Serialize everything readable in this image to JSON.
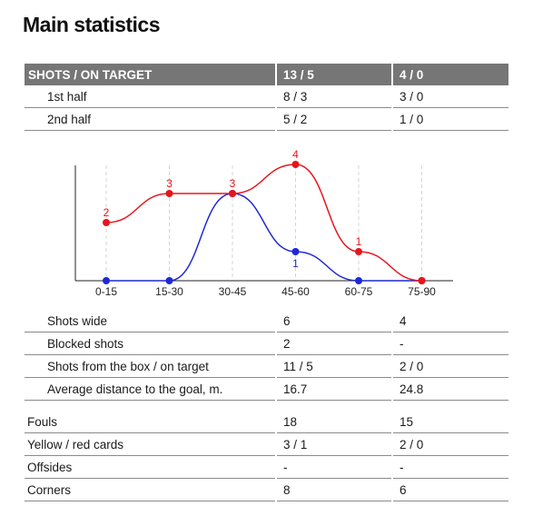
{
  "title": "Main statistics",
  "shots_table": {
    "header": {
      "label": "SHOTS / ON TARGET",
      "team1": "13 / 5",
      "team2": "4 / 0"
    },
    "rows": [
      {
        "label": "1st half",
        "team1": "8 / 3",
        "team2": "3 / 0"
      },
      {
        "label": "2nd half",
        "team1": "5 / 2",
        "team2": "1 / 0"
      }
    ]
  },
  "chart_data": {
    "type": "line",
    "categories": [
      "0-15",
      "15-30",
      "30-45",
      "45-60",
      "60-75",
      "75-90"
    ],
    "ylim": [
      0,
      4
    ],
    "grid": "vertical dashed",
    "series": [
      {
        "values": [
          2,
          3,
          3,
          4,
          1,
          0
        ],
        "color": "#e8141b",
        "labels": [
          "2",
          "3",
          "3",
          "4",
          "1",
          ""
        ]
      },
      {
        "values": [
          0,
          0,
          3,
          1,
          0,
          0
        ],
        "color": "#1f28d6",
        "labels": [
          "",
          "",
          "",
          "1",
          "",
          ""
        ]
      }
    ]
  },
  "shots_detail": [
    {
      "label": "Shots wide",
      "team1": "6",
      "team2": "4"
    },
    {
      "label": "Blocked shots",
      "team1": "2",
      "team2": "-"
    },
    {
      "label": "Shots from the box / on target",
      "team1": "11 / 5",
      "team2": "2 / 0"
    },
    {
      "label": "Average distance to the goal, m.",
      "team1": "16.7",
      "team2": "24.8"
    }
  ],
  "other_stats": [
    {
      "label": "Fouls",
      "team1": "18",
      "team2": "15"
    },
    {
      "label": "Yellow / red cards",
      "team1": "3 / 1",
      "team2": "2 / 0"
    },
    {
      "label": "Offsides",
      "team1": "-",
      "team2": "-"
    },
    {
      "label": "Corners",
      "team1": "8",
      "team2": "6"
    }
  ]
}
